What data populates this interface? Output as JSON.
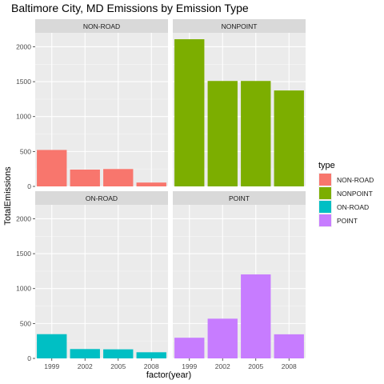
{
  "chart_data": {
    "type": "bar",
    "title": "Baltimore City, MD Emissions by Emission Type",
    "xlabel": "factor(year)",
    "ylabel": "TotalEmissions",
    "categories": [
      "1999",
      "2002",
      "2005",
      "2008"
    ],
    "ylim": [
      0,
      2200
    ],
    "yticks": [
      0,
      500,
      1000,
      1500,
      2000
    ],
    "grid": true,
    "facets": [
      "NON-ROAD",
      "NONPOINT",
      "ON-ROAD",
      "POINT"
    ],
    "legend": {
      "title": "type",
      "placement": "right"
    },
    "series": [
      {
        "name": "NON-ROAD",
        "color": "#F8766D",
        "values": [
          522,
          241,
          249,
          55
        ]
      },
      {
        "name": "NONPOINT",
        "color": "#7CAE00",
        "values": [
          2108,
          1510,
          1510,
          1374
        ]
      },
      {
        "name": "ON-ROAD",
        "color": "#00BFC4",
        "values": [
          347,
          134,
          130,
          88
        ]
      },
      {
        "name": "POINT",
        "color": "#C77CFF",
        "values": [
          296,
          569,
          1203,
          345
        ]
      }
    ]
  }
}
